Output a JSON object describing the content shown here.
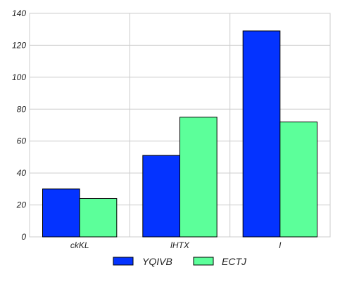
{
  "chart_data": {
    "type": "bar",
    "categories": [
      "ckKL",
      "lHTX",
      "I"
    ],
    "series": [
      {
        "name": "YQIVB",
        "values": [
          30,
          51,
          129
        ],
        "color": "#0433ff"
      },
      {
        "name": "ECTJ",
        "values": [
          24,
          75,
          72
        ],
        "color": "#5cff9a"
      }
    ],
    "title": "",
    "xlabel": "",
    "ylabel": "",
    "ylim": [
      0,
      140
    ],
    "yticks": [
      0,
      20,
      40,
      60,
      80,
      100,
      120,
      140
    ],
    "grid": true,
    "legend": "bottom-center"
  }
}
